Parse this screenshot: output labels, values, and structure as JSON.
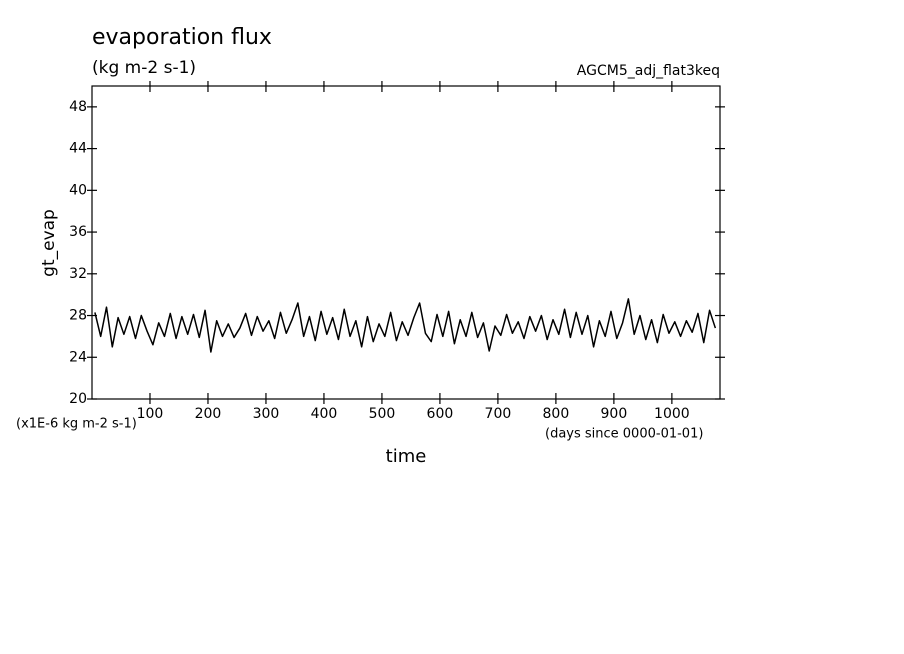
{
  "chart_data": {
    "type": "line",
    "title": "evaporation flux",
    "subtitle": "(kg m-2 s-1)",
    "annotation": "AGCM5_adj_flat3keq",
    "y_label": "gt_evap",
    "y_unit_label": "(x1E-6 kg m-2 s-1)",
    "x_label": "time",
    "x_unit_label": "(days since 0000-01-01)",
    "xlim": [
      0,
      1083
    ],
    "ylim": [
      20,
      50
    ],
    "xticks": [
      100,
      200,
      300,
      400,
      500,
      600,
      700,
      800,
      900,
      1000
    ],
    "yticks": [
      20,
      24,
      28,
      32,
      36,
      40,
      44,
      48
    ],
    "x": [
      5,
      15,
      25,
      35,
      45,
      55,
      65,
      75,
      85,
      95,
      105,
      115,
      125,
      135,
      145,
      155,
      165,
      175,
      185,
      195,
      205,
      215,
      225,
      235,
      245,
      255,
      265,
      275,
      285,
      295,
      305,
      315,
      325,
      335,
      345,
      355,
      365,
      375,
      385,
      395,
      405,
      415,
      425,
      435,
      445,
      455,
      465,
      475,
      485,
      495,
      505,
      515,
      525,
      535,
      545,
      555,
      565,
      575,
      585,
      595,
      605,
      615,
      625,
      635,
      645,
      655,
      665,
      675,
      685,
      695,
      705,
      715,
      725,
      735,
      745,
      755,
      765,
      775,
      785,
      795,
      805,
      815,
      825,
      835,
      845,
      855,
      865,
      875,
      885,
      895,
      905,
      915,
      925,
      935,
      945,
      955,
      965,
      975,
      985,
      995,
      1005,
      1015,
      1025,
      1035,
      1045,
      1055,
      1065,
      1075
    ],
    "series": [
      {
        "color": "#000000",
        "values": [
          28.3,
          26.0,
          28.8,
          25.0,
          27.8,
          26.2,
          27.9,
          25.8,
          28.0,
          26.5,
          25.2,
          27.3,
          26.0,
          28.2,
          25.8,
          27.9,
          26.2,
          28.1,
          25.9,
          28.5,
          24.5,
          27.5,
          26.0,
          27.2,
          25.9,
          26.8,
          28.2,
          26.1,
          27.9,
          26.5,
          27.5,
          25.8,
          28.3,
          26.3,
          27.6,
          29.2,
          26.0,
          27.9,
          25.6,
          28.4,
          26.2,
          27.8,
          25.7,
          28.6,
          26.0,
          27.5,
          25.0,
          27.9,
          25.5,
          27.2,
          26.0,
          28.3,
          25.6,
          27.4,
          26.1,
          27.8,
          29.2,
          26.3,
          25.5,
          28.1,
          26.0,
          28.4,
          25.3,
          27.6,
          26.0,
          28.3,
          25.9,
          27.3,
          24.6,
          27.0,
          26.1,
          28.1,
          26.3,
          27.4,
          25.8,
          27.9,
          26.5,
          28.0,
          25.7,
          27.6,
          26.2,
          28.6,
          25.9,
          28.3,
          26.2,
          28.0,
          25.0,
          27.5,
          26.0,
          28.4,
          25.8,
          27.3,
          29.6,
          26.2,
          28.0,
          25.7,
          27.6,
          25.4,
          28.1,
          26.3,
          27.4,
          26.0,
          27.5,
          26.4,
          28.2,
          25.4,
          28.5,
          26.8
        ]
      }
    ]
  }
}
